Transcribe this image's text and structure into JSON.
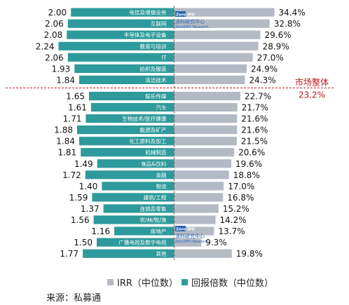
{
  "chart_data": {
    "type": "bar",
    "categories": [
      "电信及增值业务",
      "互联网",
      "半导体及电子设备",
      "教育与培训",
      "IT",
      "纺织及服装",
      "清洁技术",
      "娱乐传媒",
      "汽车",
      "生物技术/医疗健康",
      "能源及矿产",
      "化工原料及加工",
      "机械制造",
      "食品&饮料",
      "金融",
      "物流",
      "建筑/工程",
      "连锁及零售",
      "农/林/牧/渔",
      "房地产",
      "广播电视及数字电视",
      "其他"
    ],
    "series": [
      {
        "name": "回报倍数（中位数）",
        "values": [
          2.0,
          2.06,
          2.08,
          2.24,
          2.06,
          1.93,
          1.84,
          1.65,
          1.61,
          1.71,
          1.88,
          1.84,
          1.81,
          1.49,
          1.72,
          1.4,
          1.59,
          1.37,
          1.56,
          1.16,
          1.5,
          1.77
        ],
        "labels": [
          "2.00",
          "2.06",
          "2.08",
          "2.24",
          "2.06",
          "1.93",
          "1.84",
          "1.65",
          "1.61",
          "1.71",
          "1.88",
          "1.84",
          "1.81",
          "1.49",
          "1.72",
          "1.40",
          "1.59",
          "1.37",
          "1.56",
          "1.16",
          "1.50",
          "1.77"
        ],
        "color": "#2e9a9b"
      },
      {
        "name": "IRR（中位数）",
        "values": [
          34.4,
          32.8,
          29.6,
          28.9,
          27.0,
          24.9,
          24.3,
          22.7,
          21.7,
          21.6,
          21.6,
          21.5,
          20.6,
          19.6,
          18.8,
          17.0,
          16.8,
          15.2,
          14.2,
          13.7,
          9.3,
          19.8
        ],
        "labels": [
          "34.4%",
          "32.8%",
          "29.6%",
          "28.9%",
          "27.0%",
          "24.9%",
          "24.3%",
          "22.7%",
          "21.7%",
          "21.6%",
          "21.6%",
          "21.5%",
          "20.6%",
          "19.6%",
          "18.8%",
          "17.0%",
          "16.8%",
          "15.2%",
          "14.2%",
          "13.7%",
          "9.3%",
          "19.8%"
        ],
        "color": "#b4bac4"
      }
    ],
    "reference_line": {
      "label": "市场整体",
      "value_label": "23.2%",
      "color": "#c0161c"
    },
    "legend_position": "bottom",
    "source": "来源：私募通"
  },
  "watermark": {
    "text": "清科研究中心",
    "subtext": "Zero2IPO Research",
    "logo": "Zero IPO"
  }
}
